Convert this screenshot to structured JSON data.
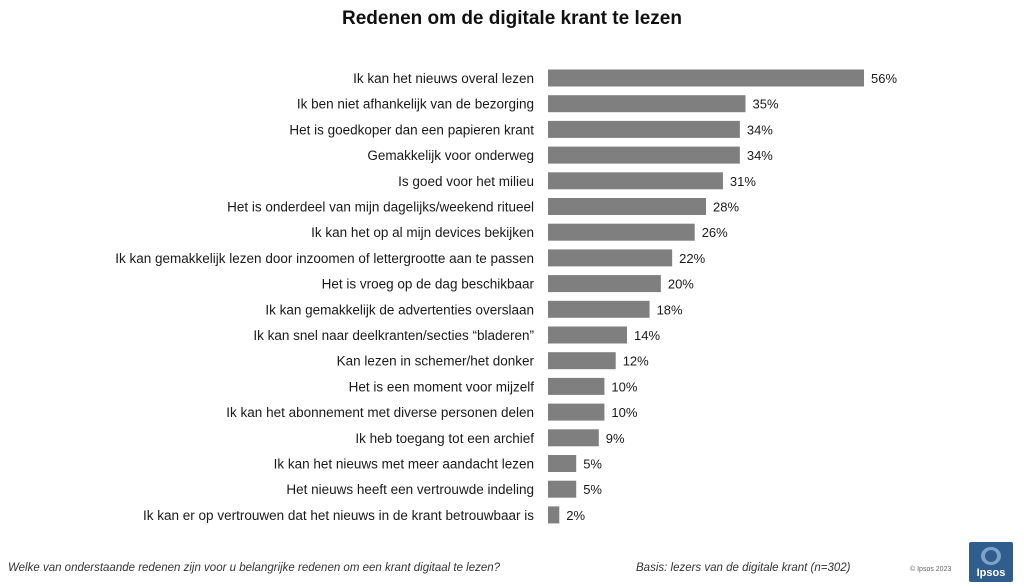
{
  "title": "Redenen om de digitale krant te lezen",
  "chart_data": {
    "type": "bar",
    "orientation": "horizontal",
    "categories": [
      "Ik kan het nieuws overal lezen",
      "Ik ben niet afhankelijk van de bezorging",
      "Het is goedkoper dan een papieren krant",
      "Gemakkelijk voor onderweg",
      "Is goed voor het milieu",
      "Het is onderdeel van mijn dagelijks/weekend ritueel",
      "Ik kan het op al mijn devices bekijken",
      "Ik kan gemakkelijk lezen door inzoomen of lettergrootte aan te passen",
      "Het is vroeg op de dag beschikbaar",
      "Ik kan gemakkelijk de advertenties overslaan",
      "Ik kan snel naar deelkranten/secties “bladeren”",
      "Kan lezen in schemer/het donker",
      "Het is een moment voor mijzelf",
      "Ik kan het abonnement met diverse personen delen",
      "Ik heb toegang tot een archief",
      "Ik kan het nieuws met meer aandacht lezen",
      "Het nieuws heeft een vertrouwde indeling",
      "Ik kan er op vertrouwen dat het nieuws in de krant betrouwbaar is"
    ],
    "values": [
      56,
      35,
      34,
      34,
      31,
      28,
      26,
      22,
      20,
      18,
      14,
      12,
      10,
      10,
      9,
      5,
      5,
      2
    ],
    "value_labels": [
      "56%",
      "35%",
      "34%",
      "34%",
      "31%",
      "28%",
      "26%",
      "22%",
      "20%",
      "18%",
      "14%",
      "12%",
      "10%",
      "10%",
      "9%",
      "5%",
      "5%",
      "2%"
    ],
    "unit": "%",
    "xlim": [
      0,
      56
    ],
    "grid": false,
    "bar_color": "#7f7f7f"
  },
  "footer": {
    "question": "Welke van onderstaande redenen zijn voor u belangrijke redenen om een krant digitaal te lezen?",
    "basis": "Basis: lezers van de digitale krant (n=302)",
    "copyright": "© Ipsos 2023",
    "logo_text": "Ipsos"
  },
  "colors": {
    "bar": "#7f7f7f",
    "logo_background": "#2f5e8e"
  }
}
